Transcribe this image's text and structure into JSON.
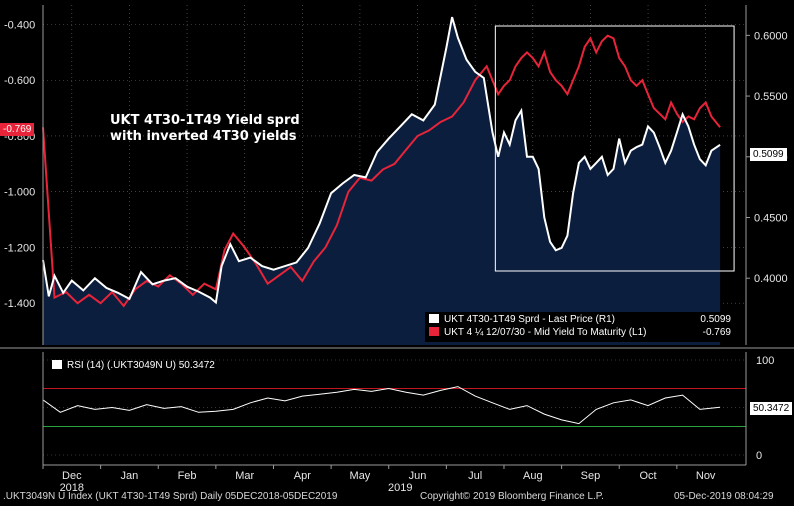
{
  "annotation": {
    "line1": "UKT 4T30-1T49 Yield sprd",
    "line2": "with inverted 4T30 yields"
  },
  "colors": {
    "background": "#000000",
    "area": "#0b1e3d",
    "spread": "#ffffff",
    "yield": "#e8243a",
    "rsi_upper": "#c0181e",
    "rsi_lower": "#2aa13a",
    "grid": "#6a6a6a"
  },
  "legend": {
    "spread_label": "UKT 4T30-1T49 Sprd - Last Price (R1)",
    "spread_value": "0.5099",
    "yield_label": "UKT 4 ¼ 12/07/30 - Mid Yield To Maturity (L1)",
    "yield_value": "-0.769"
  },
  "badges": {
    "left": "-0.769",
    "right": "0.5099",
    "rsi": "50.3472"
  },
  "rsi_label": "RSI (14) (.UKT3049N U) 50.3472",
  "footer": {
    "left": ".UKT3049N U Index (UKT 4T30-1T49 Sprd)  Daily 05DEC2018-05DEC2019",
    "center": "Copyright© 2019 Bloomberg Finance L.P.",
    "right": "05-Dec-2019 08:04:29"
  },
  "chart_data": [
    {
      "type": "line",
      "xlabel": "",
      "ylabel": "",
      "x_tick_labels": [
        "Dec",
        "Jan",
        "Feb",
        "Mar",
        "Apr",
        "May",
        "Jun",
        "Jul",
        "Aug",
        "Sep",
        "Oct",
        "Nov"
      ],
      "year_labels": [
        "2018",
        "2019"
      ],
      "left_axis": {
        "ticks": [
          -0.4,
          -0.6,
          -0.8,
          -1.0,
          -1.2,
          -1.4
        ],
        "tick_labels": [
          "-0.400",
          "-0.600",
          "-0.800",
          "-1.000",
          "-1.200",
          "-1.400"
        ],
        "range": [
          -1.55,
          -0.33
        ]
      },
      "right_axis": {
        "ticks": [
          0.6,
          0.55,
          0.5,
          0.45,
          0.4
        ],
        "tick_labels": [
          "0.6000",
          "0.5500",
          "0.5000",
          "0.4500",
          "0.4000"
        ],
        "range": [
          0.345,
          0.625
        ]
      },
      "x_range": [
        0,
        12.2
      ],
      "series": [
        {
          "name": "UKT 4T30-1T49 Sprd - Last Price (R1)",
          "axis": "right",
          "color": "#ffffff",
          "x": [
            0,
            0.1,
            0.2,
            0.35,
            0.5,
            0.7,
            0.9,
            1.1,
            1.3,
            1.5,
            1.7,
            1.9,
            2.1,
            2.3,
            2.5,
            2.7,
            2.9,
            3.0,
            3.1,
            3.25,
            3.4,
            3.6,
            3.8,
            4.0,
            4.2,
            4.4,
            4.6,
            4.8,
            5.0,
            5.2,
            5.4,
            5.6,
            5.8,
            6.0,
            6.2,
            6.4,
            6.6,
            6.8,
            7.0,
            7.1,
            7.2,
            7.35,
            7.5,
            7.65,
            7.8,
            7.9,
            8.0,
            8.1,
            8.2,
            8.3,
            8.4,
            8.5,
            8.6,
            8.7,
            8.8,
            8.9,
            9.0,
            9.1,
            9.2,
            9.3,
            9.4,
            9.5,
            9.6,
            9.7,
            9.8,
            9.9,
            10.0,
            10.1,
            10.2,
            10.3,
            10.4,
            10.5,
            10.6,
            10.7,
            10.8,
            10.9,
            11.0,
            11.1,
            11.2,
            11.3,
            11.4,
            11.5,
            11.6,
            11.75
          ],
          "values": [
            0.415,
            0.385,
            0.402,
            0.388,
            0.398,
            0.39,
            0.4,
            0.392,
            0.388,
            0.383,
            0.405,
            0.395,
            0.398,
            0.4,
            0.393,
            0.389,
            0.384,
            0.38,
            0.41,
            0.428,
            0.414,
            0.417,
            0.41,
            0.407,
            0.41,
            0.413,
            0.425,
            0.445,
            0.47,
            0.478,
            0.485,
            0.483,
            0.504,
            0.515,
            0.525,
            0.535,
            0.53,
            0.543,
            0.59,
            0.615,
            0.598,
            0.58,
            0.57,
            0.565,
            0.52,
            0.5,
            0.52,
            0.51,
            0.53,
            0.538,
            0.5,
            0.5,
            0.49,
            0.45,
            0.43,
            0.423,
            0.425,
            0.435,
            0.47,
            0.495,
            0.5,
            0.49,
            0.495,
            0.5,
            0.485,
            0.49,
            0.515,
            0.495,
            0.505,
            0.508,
            0.51,
            0.525,
            0.52,
            0.508,
            0.495,
            0.505,
            0.52,
            0.535,
            0.525,
            0.51,
            0.498,
            0.493,
            0.505,
            0.5099
          ]
        },
        {
          "name": "UKT 4 ¼ 12/07/30 - Mid Yield To Maturity (L1)",
          "axis": "left",
          "color": "#e8243a",
          "x": [
            0,
            0.2,
            0.4,
            0.6,
            0.8,
            1.0,
            1.2,
            1.4,
            1.6,
            1.8,
            2.0,
            2.2,
            2.4,
            2.6,
            2.8,
            3.0,
            3.15,
            3.3,
            3.5,
            3.7,
            3.9,
            4.1,
            4.3,
            4.5,
            4.7,
            4.9,
            5.1,
            5.3,
            5.5,
            5.7,
            5.9,
            6.1,
            6.3,
            6.5,
            6.7,
            6.9,
            7.1,
            7.3,
            7.5,
            7.7,
            7.9,
            8.0,
            8.1,
            8.2,
            8.3,
            8.4,
            8.5,
            8.6,
            8.7,
            8.8,
            8.9,
            9.0,
            9.1,
            9.2,
            9.3,
            9.4,
            9.5,
            9.6,
            9.7,
            9.8,
            9.9,
            10.0,
            10.1,
            10.2,
            10.3,
            10.4,
            10.5,
            10.6,
            10.7,
            10.8,
            10.9,
            11.0,
            11.1,
            11.2,
            11.3,
            11.4,
            11.5,
            11.6,
            11.75
          ],
          "values": [
            -0.769,
            -1.38,
            -1.36,
            -1.4,
            -1.37,
            -1.4,
            -1.36,
            -1.41,
            -1.35,
            -1.32,
            -1.34,
            -1.3,
            -1.33,
            -1.37,
            -1.33,
            -1.35,
            -1.21,
            -1.15,
            -1.2,
            -1.26,
            -1.33,
            -1.3,
            -1.27,
            -1.32,
            -1.25,
            -1.2,
            -1.12,
            -1.0,
            -0.95,
            -0.96,
            -0.92,
            -0.9,
            -0.85,
            -0.8,
            -0.78,
            -0.75,
            -0.73,
            -0.68,
            -0.6,
            -0.55,
            -0.65,
            -0.62,
            -0.6,
            -0.55,
            -0.52,
            -0.5,
            -0.52,
            -0.55,
            -0.5,
            -0.57,
            -0.6,
            -0.62,
            -0.65,
            -0.6,
            -0.55,
            -0.48,
            -0.45,
            -0.5,
            -0.46,
            -0.44,
            -0.45,
            -0.52,
            -0.55,
            -0.6,
            -0.62,
            -0.6,
            -0.65,
            -0.7,
            -0.72,
            -0.74,
            -0.68,
            -0.72,
            -0.75,
            -0.73,
            -0.74,
            -0.7,
            -0.68,
            -0.73,
            -0.769
          ]
        }
      ]
    },
    {
      "type": "line",
      "xlabel": "",
      "ylabel": "",
      "axis": {
        "ticks": [
          100,
          50,
          0
        ],
        "tick_labels": [
          "100",
          "50",
          "0"
        ],
        "range": [
          0,
          100
        ]
      },
      "reference_lines": [
        70,
        30
      ],
      "series": [
        {
          "name": "RSI (14) (.UKT3049N U)",
          "color": "#ffffff",
          "x": [
            0,
            0.3,
            0.6,
            0.9,
            1.2,
            1.5,
            1.8,
            2.1,
            2.4,
            2.7,
            3.0,
            3.3,
            3.6,
            3.9,
            4.2,
            4.5,
            4.8,
            5.1,
            5.4,
            5.7,
            6.0,
            6.3,
            6.6,
            6.9,
            7.2,
            7.5,
            7.8,
            8.1,
            8.4,
            8.7,
            9.0,
            9.3,
            9.6,
            9.9,
            10.2,
            10.5,
            10.8,
            11.1,
            11.4,
            11.75
          ],
          "values": [
            58,
            45,
            52,
            48,
            50,
            47,
            53,
            49,
            51,
            45,
            46,
            48,
            55,
            60,
            57,
            62,
            64,
            66,
            69,
            67,
            70,
            66,
            63,
            68,
            72,
            62,
            55,
            48,
            52,
            43,
            37,
            33,
            48,
            55,
            58,
            52,
            60,
            63,
            48,
            50.3472
          ]
        }
      ]
    }
  ]
}
